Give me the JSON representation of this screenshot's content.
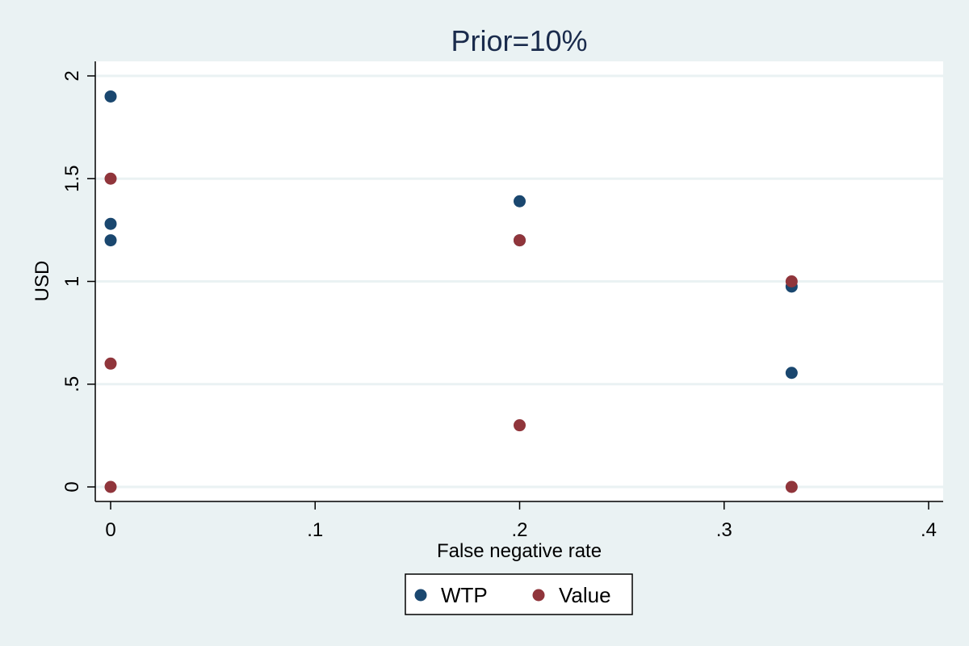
{
  "chart_data": {
    "type": "scatter",
    "title": "Prior=10%",
    "xlabel": "False negative rate",
    "ylabel": "USD",
    "xlim": [
      0,
      0.4
    ],
    "ylim": [
      0,
      2
    ],
    "xticks": [
      {
        "value": 0,
        "label": "0"
      },
      {
        "value": 0.1,
        "label": ".1"
      },
      {
        "value": 0.2,
        "label": ".2"
      },
      {
        "value": 0.3,
        "label": ".3"
      },
      {
        "value": 0.4,
        "label": ".4"
      }
    ],
    "yticks": [
      {
        "value": 0,
        "label": "0"
      },
      {
        "value": 0.5,
        "label": ".5"
      },
      {
        "value": 1,
        "label": "1"
      },
      {
        "value": 1.5,
        "label": "1.5"
      },
      {
        "value": 2,
        "label": "2"
      }
    ],
    "grid": "horizontal",
    "legend_position": "bottom",
    "series": [
      {
        "name": "WTP",
        "color": "#1a476f",
        "points": [
          {
            "x": 0,
            "y": 1.9
          },
          {
            "x": 0,
            "y": 1.28
          },
          {
            "x": 0,
            "y": 1.2
          },
          {
            "x": 0.2,
            "y": 1.39
          },
          {
            "x": 0.2,
            "y": 1.2
          },
          {
            "x": 0.333,
            "y": 0.975
          },
          {
            "x": 0.333,
            "y": 0.555
          }
        ]
      },
      {
        "name": "Value",
        "color": "#90353b",
        "points": [
          {
            "x": 0,
            "y": 1.5
          },
          {
            "x": 0,
            "y": 0.6
          },
          {
            "x": 0,
            "y": 0
          },
          {
            "x": 0.2,
            "y": 1.2
          },
          {
            "x": 0.2,
            "y": 0.3
          },
          {
            "x": 0.333,
            "y": 1.0
          },
          {
            "x": 0.333,
            "y": 0
          }
        ]
      }
    ]
  }
}
